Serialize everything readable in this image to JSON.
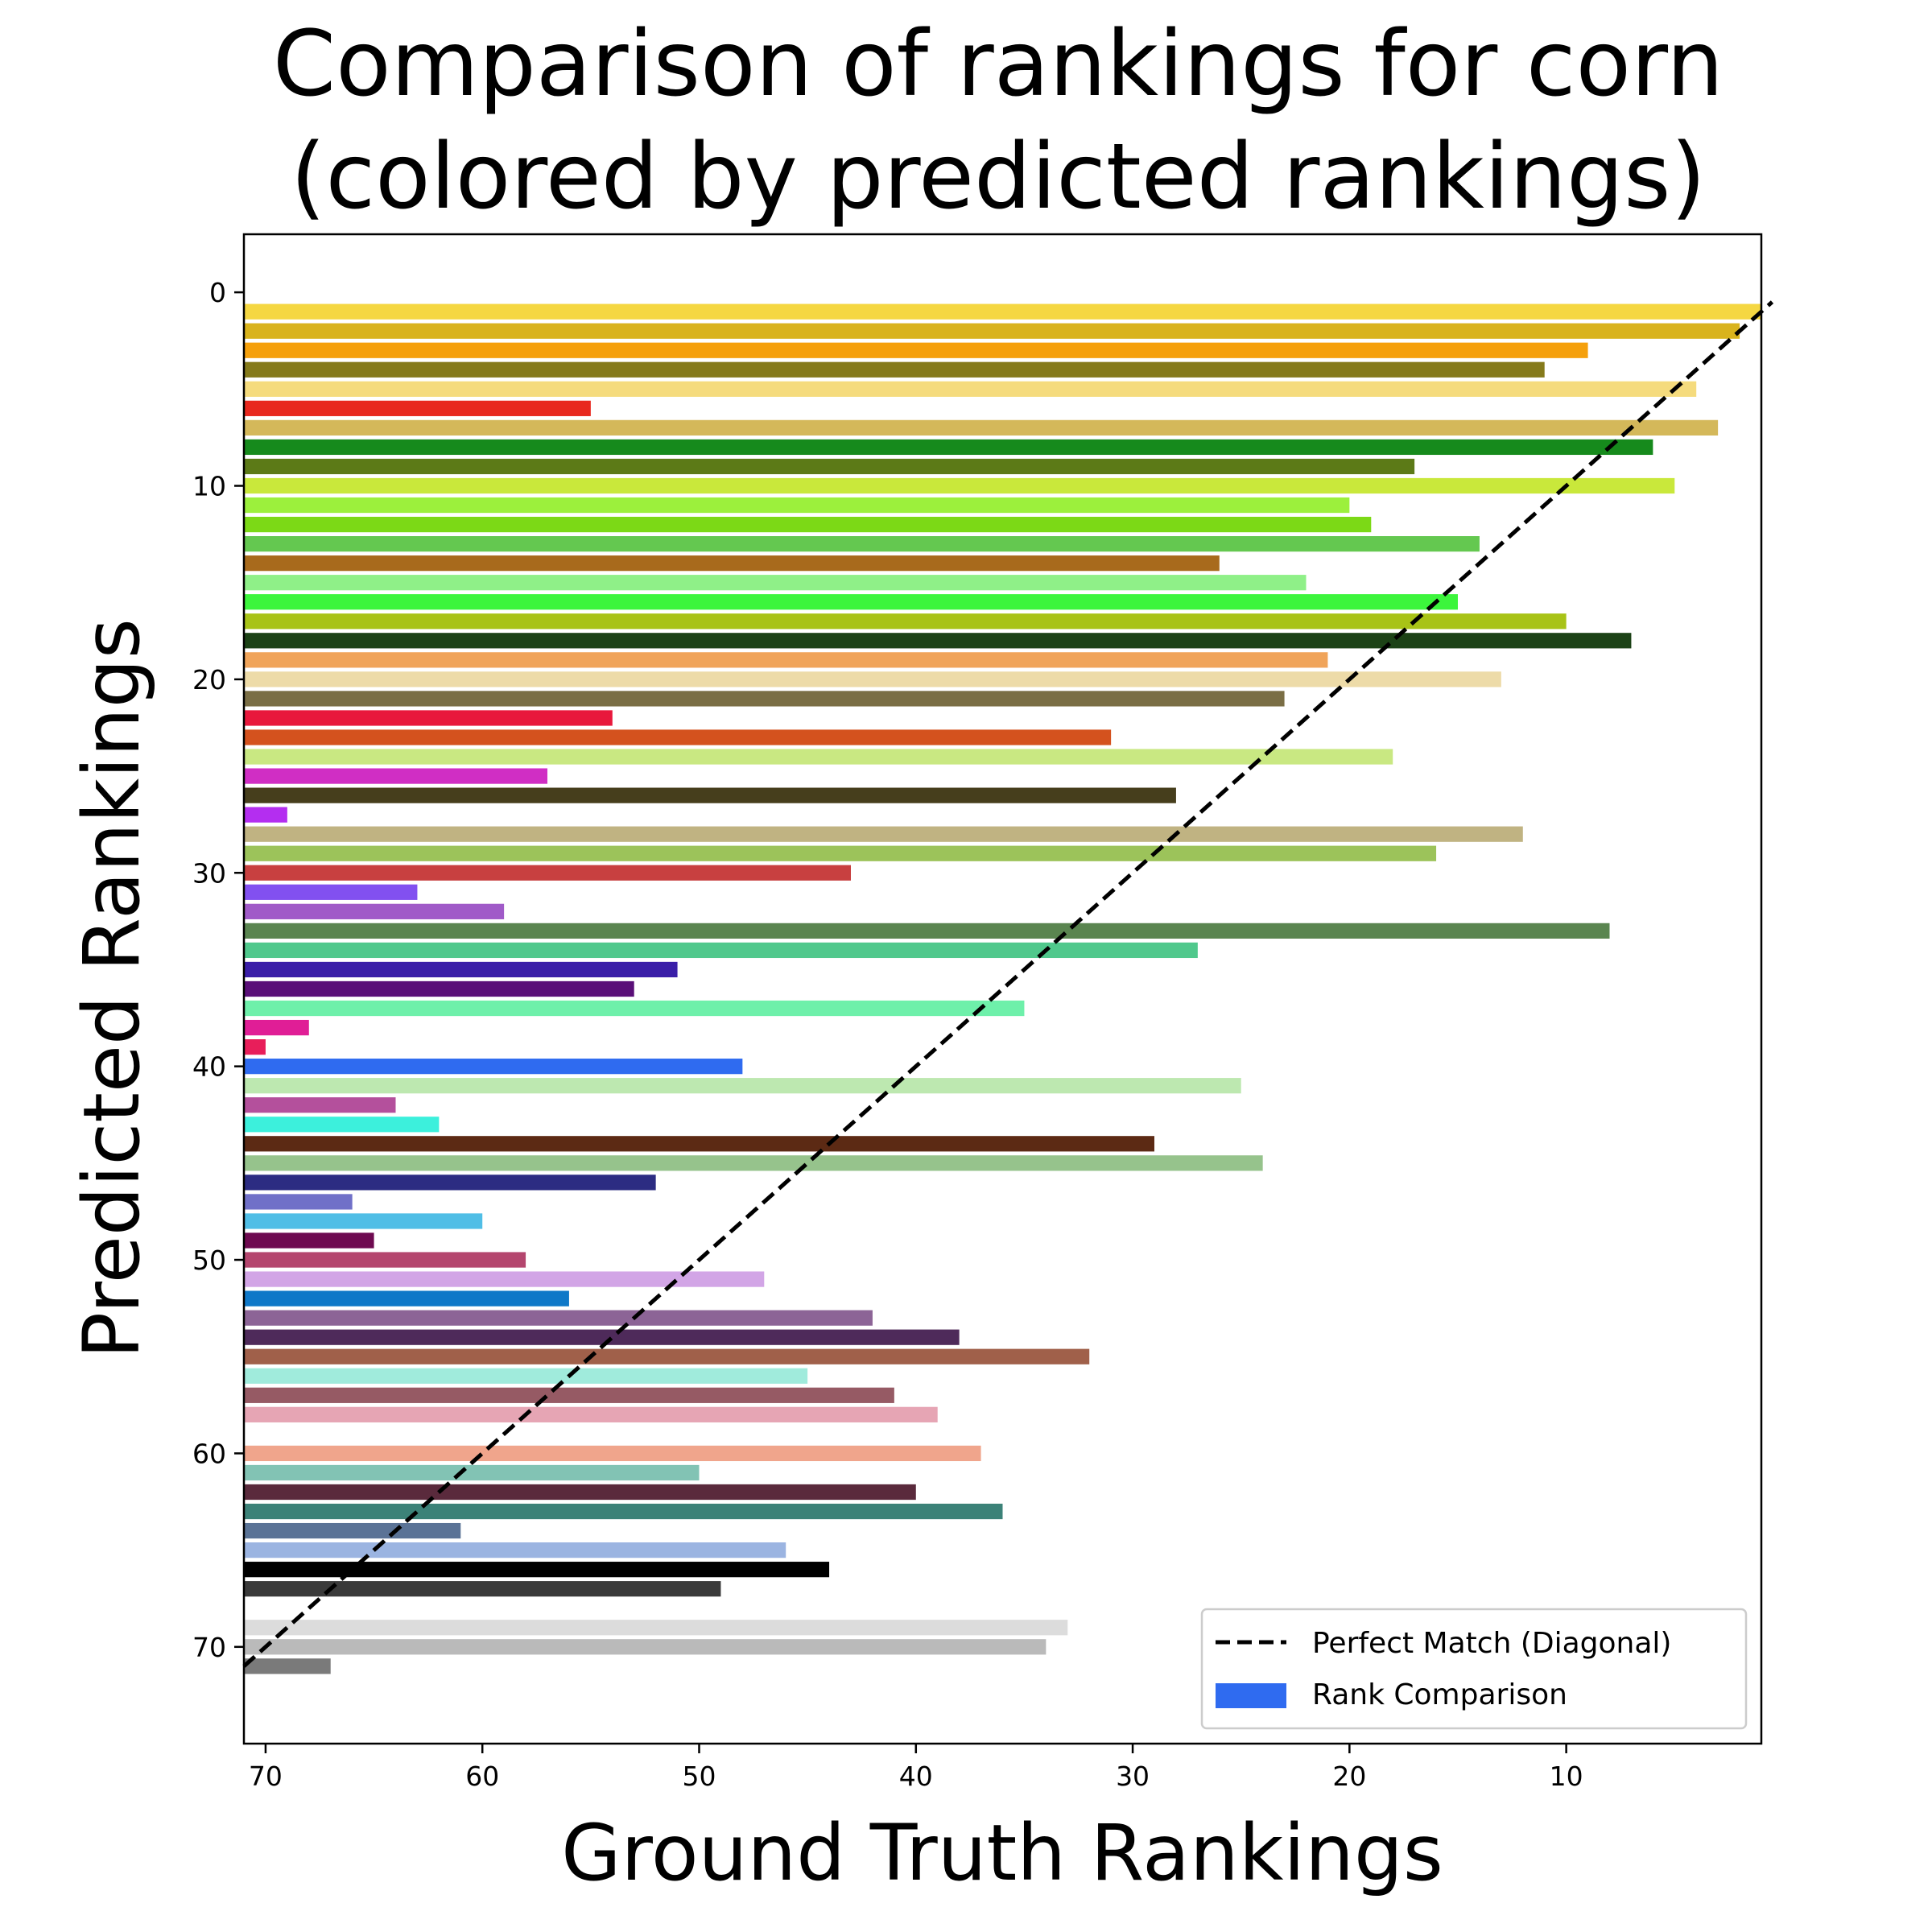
{
  "chart_data": {
    "type": "bar",
    "orientation": "horizontal",
    "title_lines": [
      "Comparison of rankings for corn",
      "(colored by predicted rankings)"
    ],
    "xlabel": "Ground Truth Rankings",
    "ylabel": "Predicted Rankings",
    "xlim": [
      71,
      1
    ],
    "ylim": [
      75,
      -3
    ],
    "xticks": [
      70,
      60,
      50,
      40,
      30,
      20,
      10
    ],
    "yticks": [
      0,
      10,
      20,
      30,
      40,
      50,
      60,
      70
    ],
    "grid": false,
    "legend_position": "lower right",
    "legend": [
      {
        "label": "Perfect Match (Diagonal)",
        "kind": "dashed-line",
        "color": "#000000"
      },
      {
        "label": "Rank Comparison",
        "kind": "patch",
        "color": "#2f6bf0"
      }
    ],
    "diagonal": {
      "from": [
        71,
        71
      ],
      "to": [
        0.5,
        0.5
      ]
    },
    "bars": [
      {
        "y": 1,
        "x": 1,
        "color": "#f5d742"
      },
      {
        "y": 2,
        "x": 2,
        "color": "#d9b31c"
      },
      {
        "y": 3,
        "x": 9,
        "color": "#f5a00c"
      },
      {
        "y": 4,
        "x": 11,
        "color": "#857a1b"
      },
      {
        "y": 5,
        "x": 4,
        "color": "#f5db7d"
      },
      {
        "y": 6,
        "x": 55,
        "color": "#e8281e"
      },
      {
        "y": 7,
        "x": 3,
        "color": "#d4b85a"
      },
      {
        "y": 8,
        "x": 6,
        "color": "#168a1c"
      },
      {
        "y": 9,
        "x": 17,
        "color": "#5c7a17"
      },
      {
        "y": 10,
        "x": 5,
        "color": "#c9e83b"
      },
      {
        "y": 11,
        "x": 20,
        "color": "#9cf03c"
      },
      {
        "y": 12,
        "x": 19,
        "color": "#7cd916"
      },
      {
        "y": 13,
        "x": 14,
        "color": "#64c850"
      },
      {
        "y": 14,
        "x": 26,
        "color": "#a86a1c"
      },
      {
        "y": 15,
        "x": 22,
        "color": "#8ff088"
      },
      {
        "y": 16,
        "x": 15,
        "color": "#3cf53c"
      },
      {
        "y": 17,
        "x": 10,
        "color": "#a8c317"
      },
      {
        "y": 18,
        "x": 7,
        "color": "#1c4216"
      },
      {
        "y": 19,
        "x": 21,
        "color": "#f0a45a"
      },
      {
        "y": 20,
        "x": 13,
        "color": "#eddba8"
      },
      {
        "y": 21,
        "x": 23,
        "color": "#7a6e45"
      },
      {
        "y": 22,
        "x": 54,
        "color": "#e8183c"
      },
      {
        "y": 23,
        "x": 31,
        "color": "#d4521e"
      },
      {
        "y": 24,
        "x": 18,
        "color": "#c9e882"
      },
      {
        "y": 25,
        "x": 57,
        "color": "#d02ec4"
      },
      {
        "y": 26,
        "x": 28,
        "color": "#463e1c"
      },
      {
        "y": 27,
        "x": 69,
        "color": "#b42ef0"
      },
      {
        "y": 28,
        "x": 12,
        "color": "#c0b382"
      },
      {
        "y": 29,
        "x": 16,
        "color": "#9cc35a"
      },
      {
        "y": 30,
        "x": 43,
        "color": "#c84040"
      },
      {
        "y": 31,
        "x": 63,
        "color": "#8250f0"
      },
      {
        "y": 32,
        "x": 59,
        "color": "#a05ac8"
      },
      {
        "y": 33,
        "x": 8,
        "color": "#5a8550"
      },
      {
        "y": 34,
        "x": 27,
        "color": "#50c88c"
      },
      {
        "y": 35,
        "x": 51,
        "color": "#3a1ea8"
      },
      {
        "y": 36,
        "x": 53,
        "color": "#5a0f78"
      },
      {
        "y": 37,
        "x": 35,
        "color": "#6ef0aa"
      },
      {
        "y": 38,
        "x": 68,
        "color": "#e01e96"
      },
      {
        "y": 39,
        "x": 70,
        "color": "#e81e5a"
      },
      {
        "y": 40,
        "x": 48,
        "color": "#2f6bf0"
      },
      {
        "y": 41,
        "x": 25,
        "color": "#bde8b0"
      },
      {
        "y": 42,
        "x": 64,
        "color": "#b4509c"
      },
      {
        "y": 43,
        "x": 62,
        "color": "#3cf0dc"
      },
      {
        "y": 44,
        "x": 29,
        "color": "#5c2a14"
      },
      {
        "y": 45,
        "x": 24,
        "color": "#96c38c"
      },
      {
        "y": 46,
        "x": 52,
        "color": "#2c2c82"
      },
      {
        "y": 47,
        "x": 66,
        "color": "#7070c8"
      },
      {
        "y": 48,
        "x": 60,
        "color": "#50bee6"
      },
      {
        "y": 49,
        "x": 65,
        "color": "#6e0a50"
      },
      {
        "y": 50,
        "x": 58,
        "color": "#b4466e"
      },
      {
        "y": 51,
        "x": 47,
        "color": "#d2a5e6"
      },
      {
        "y": 52,
        "x": 56,
        "color": "#0f78c8"
      },
      {
        "y": 53,
        "x": 42,
        "color": "#8c6496"
      },
      {
        "y": 54,
        "x": 38,
        "color": "#4e2a5a"
      },
      {
        "y": 55,
        "x": 32,
        "color": "#a0604a"
      },
      {
        "y": 56,
        "x": 45,
        "color": "#a0ebdc"
      },
      {
        "y": 57,
        "x": 41,
        "color": "#965a64"
      },
      {
        "y": 58,
        "x": 39,
        "color": "#e6a5b4"
      },
      {
        "y": 60,
        "x": 37,
        "color": "#f0a58c"
      },
      {
        "y": 61,
        "x": 50,
        "color": "#82c3b4"
      },
      {
        "y": 62,
        "x": 40,
        "color": "#5a2a3c"
      },
      {
        "y": 63,
        "x": 36,
        "color": "#3c8278"
      },
      {
        "y": 64,
        "x": 61,
        "color": "#5a7396"
      },
      {
        "y": 65,
        "x": 46,
        "color": "#9bb4e1"
      },
      {
        "y": 66,
        "x": 44,
        "color": "#000000"
      },
      {
        "y": 67,
        "x": 49,
        "color": "#3a3a3a"
      },
      {
        "y": 69,
        "x": 33,
        "color": "#dcdcdc"
      },
      {
        "y": 70,
        "x": 34,
        "color": "#bababa"
      },
      {
        "y": 71,
        "x": 67,
        "color": "#7a7a7a"
      }
    ]
  }
}
